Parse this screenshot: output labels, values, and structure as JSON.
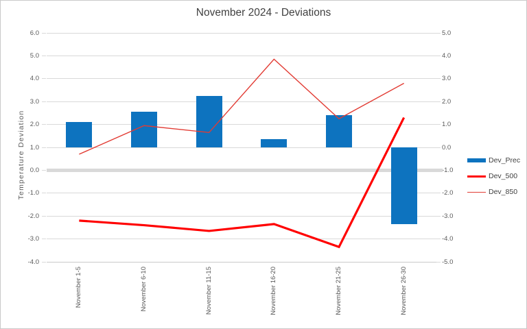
{
  "chart_data": {
    "type": "combo-bar-line",
    "title": "November 2024 - Deviations",
    "categories": [
      "November 1-5",
      "November 6-10",
      "November 11-15",
      "November 16-20",
      "November 21-25",
      "November 26-30"
    ],
    "series": [
      {
        "name": "Dev_Prec",
        "type": "bar",
        "axis": "right",
        "color": "#0D73BF",
        "stroke_width": 6,
        "values": [
          1.1,
          1.55,
          2.25,
          0.35,
          1.4,
          -3.35
        ]
      },
      {
        "name": "Dev_500",
        "type": "line",
        "axis": "left",
        "color": "#FF0000",
        "stroke_width": 3.2,
        "values": [
          -2.2,
          -2.4,
          -2.65,
          -2.35,
          -3.35,
          2.3
        ]
      },
      {
        "name": "Dev_850",
        "type": "line",
        "axis": "left",
        "color": "#E23B33",
        "stroke_width": 1.4,
        "values": [
          0.7,
          1.95,
          1.65,
          4.85,
          2.25,
          3.8
        ]
      }
    ],
    "left_axis": {
      "title": "Temperature Deviation",
      "min": -4.0,
      "max": 6.0,
      "step": 1.0,
      "labels": [
        "6.0",
        "5.0",
        "4.0",
        "3.0",
        "2.0",
        "1.0",
        "0.0",
        "-1.0",
        "-2.0",
        "-3.0",
        "-4.0"
      ]
    },
    "right_axis": {
      "min": -5.0,
      "max": 5.0,
      "step": 1.0,
      "labels": [
        "5.0",
        "4.0",
        "3.0",
        "2.0",
        "1.0",
        "0.0",
        "-1.0",
        "-2.0",
        "-3.0",
        "-4.0",
        "-5.0"
      ]
    },
    "baseline_left_value": 0.0,
    "grid": true,
    "legend_position": "right",
    "colors": {
      "grid": "#D9D9D9",
      "axis_line": "#C9C9C9",
      "baseline": "#D9D9D9",
      "axis_text": "#595959",
      "title_text": "#404040",
      "legend_text": "#404040",
      "border": "#C9C9C9",
      "background": "#FFFFFF"
    }
  }
}
